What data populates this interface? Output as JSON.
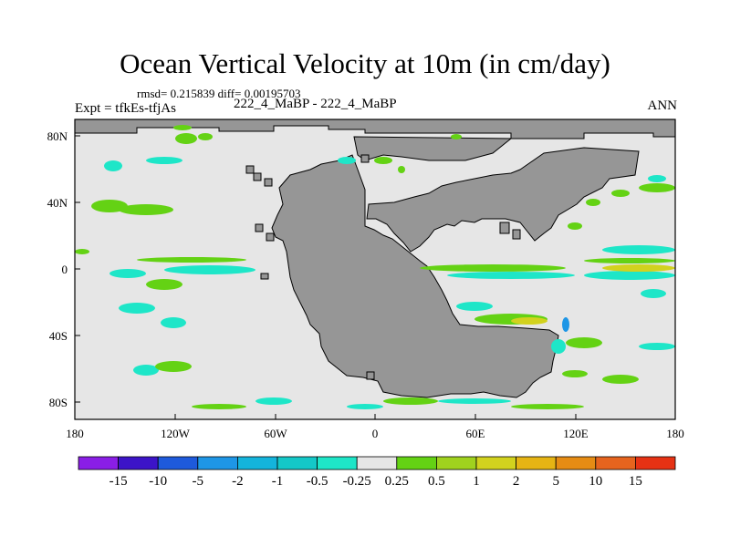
{
  "title": "Ocean Vertical Velocity at 10m (in cm/day)",
  "stats": "rmsd= 0.215839 diff= 0.00195703",
  "expt": "Expt = tfkEs-tfjAs",
  "case": "222_4_MaBP - 222_4_MaBP",
  "season": "ANN",
  "lat_ticks": [
    "80N",
    "40N",
    "0",
    "40S",
    "80S"
  ],
  "lon_ticks": [
    "180",
    "120W",
    "60W",
    "0",
    "60E",
    "120E",
    "180"
  ],
  "colorbar": {
    "labels": [
      "-15",
      "-10",
      "-5",
      "-2",
      "-1",
      "-0.5",
      "-0.25",
      "0.25",
      "0.5",
      "1",
      "2",
      "5",
      "10",
      "15"
    ],
    "colors": [
      "#8a1ee6",
      "#3c14c8",
      "#1e5adc",
      "#1e96e6",
      "#14b4dc",
      "#14c8c8",
      "#1ee6c8",
      "#e6e6e6",
      "#64d214",
      "#a0d21e",
      "#d2d21e",
      "#e6b414",
      "#e68c14",
      "#e6641e",
      "#e63214"
    ]
  },
  "colors": {
    "land": "#969696",
    "ocean": "#e6e6e6"
  }
}
